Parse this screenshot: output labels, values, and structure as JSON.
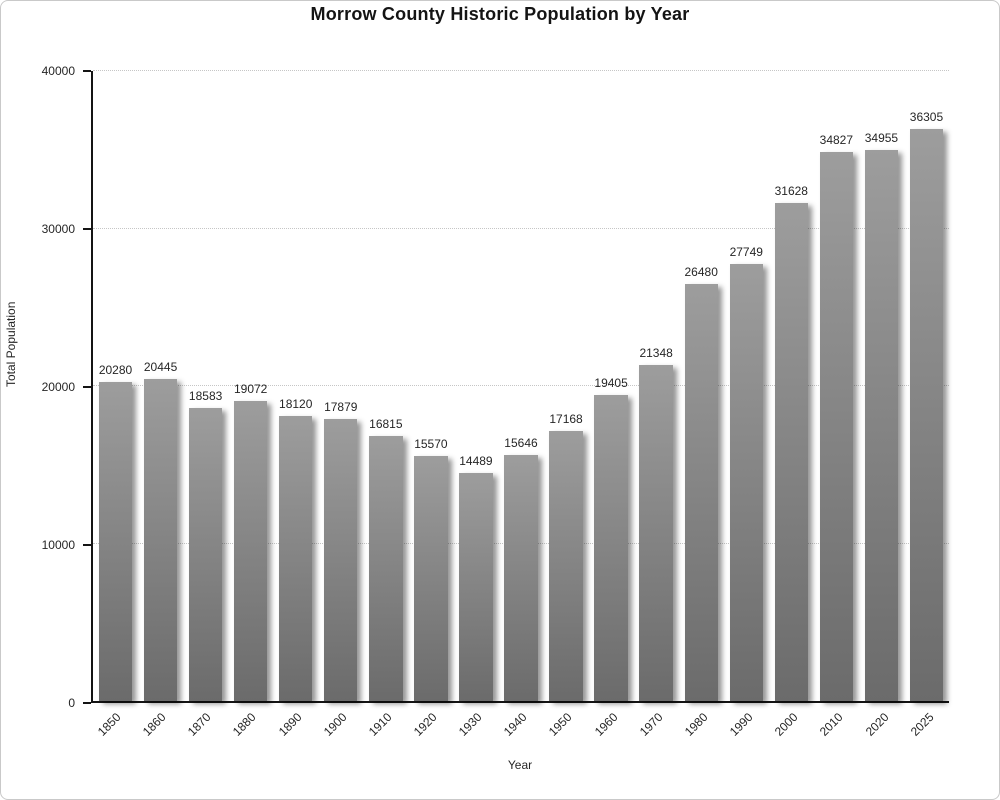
{
  "chart_data": {
    "type": "bar",
    "title": "Morrow County Historic Population by Year",
    "xlabel": "Year",
    "ylabel": "Total Population",
    "categories": [
      "1850",
      "1860",
      "1870",
      "1880",
      "1890",
      "1900",
      "1910",
      "1920",
      "1930",
      "1940",
      "1950",
      "1960",
      "1970",
      "1980",
      "1990",
      "2000",
      "2010",
      "2020",
      "2025"
    ],
    "values": [
      20280,
      20445,
      18583,
      19072,
      18120,
      17879,
      16815,
      15570,
      14489,
      15646,
      17168,
      19405,
      21348,
      26480,
      27749,
      31628,
      34827,
      34955,
      36305
    ],
    "bar_labels_shown": true,
    "ylim": [
      0,
      40000
    ],
    "yticks": [
      0,
      10000,
      20000,
      30000,
      40000
    ],
    "grid": "horizontal-dotted",
    "legend": "none",
    "style": {
      "bar_gradient_top": "#9d9d9d",
      "bar_gradient_bottom": "#6b6b6b",
      "grid_color": "#c6c6c6",
      "axis_color": "#141414",
      "text_color": "#262626",
      "background": "#ffffff",
      "frame_border": "#c9c9c9"
    }
  }
}
